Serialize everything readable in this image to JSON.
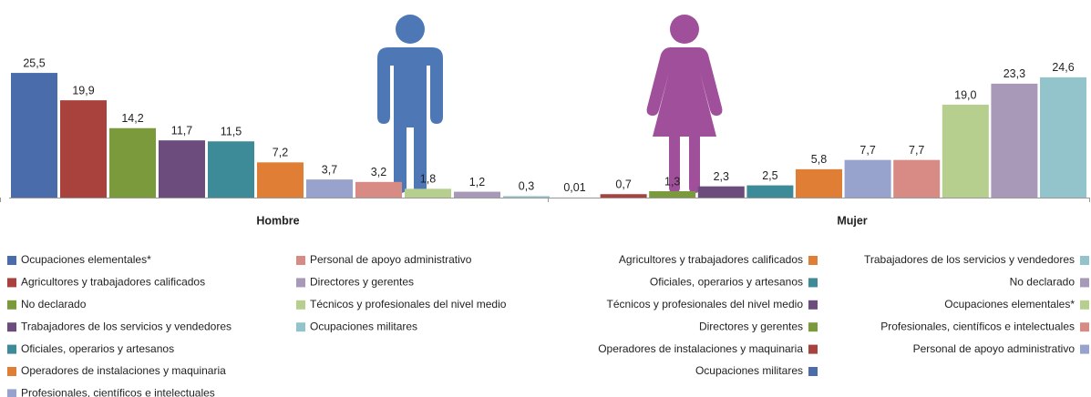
{
  "chart_data": [
    {
      "type": "bar",
      "title": "Hombre",
      "categories": [
        "Ocupaciones elementales*",
        "Agricultores y trabajadores calificados",
        "No declarado",
        "Trabajadores de los servicios y vendedores",
        "Oficiales, operarios y artesanos",
        "Operadores de instalaciones y maquinaria",
        "Profesionales, científicos e intelectuales",
        "Personal de apoyo administrativo",
        "Técnicos y profesionales del nivel medio",
        "Directores y gerentes",
        "Ocupaciones militares"
      ],
      "values": [
        25.5,
        19.9,
        14.2,
        11.7,
        11.5,
        7.2,
        3.7,
        3.2,
        1.8,
        1.2,
        0.3
      ],
      "value_labels": [
        "25,5",
        "19,9",
        "14,2",
        "11,7",
        "11,5",
        "7,2",
        "3,7",
        "3,2",
        "1,8",
        "1,2",
        "0,3"
      ],
      "colors": [
        "#4a6cab",
        "#a9413c",
        "#7b9a3c",
        "#6b4c7d",
        "#3d8b99",
        "#e07e36",
        "#97a2cd",
        "#d88b85",
        "#b7cf8e",
        "#a899b8",
        "#93c4cc"
      ],
      "legend": [
        {
          "name": "Ocupaciones elementales*",
          "color": "#4a6cab"
        },
        {
          "name": "Agricultores y trabajadores calificados",
          "color": "#a9413c"
        },
        {
          "name": "No declarado",
          "color": "#7b9a3c"
        },
        {
          "name": "Trabajadores de los servicios y vendedores",
          "color": "#6b4c7d"
        },
        {
          "name": "Oficiales, operarios y artesanos",
          "color": "#3d8b99"
        },
        {
          "name": "Operadores de instalaciones y maquinaria",
          "color": "#e07e36"
        },
        {
          "name": "Profesionales, científicos e intelectuales",
          "color": "#97a2cd"
        },
        {
          "name": "Personal de apoyo administrativo",
          "color": "#d88b85"
        },
        {
          "name": "Directores y gerentes",
          "color": "#a899b8"
        },
        {
          "name": "Técnicos y profesionales del nivel medio",
          "color": "#b7cf8e"
        },
        {
          "name": "Ocupaciones militares",
          "color": "#93c4cc"
        }
      ]
    },
    {
      "type": "bar",
      "title": "Mujer",
      "categories": [
        "Ocupaciones militares",
        "Operadores de instalaciones y maquinaria",
        "Directores y gerentes",
        "Técnicos y profesionales del nivel medio",
        "Oficiales, operarios y artesanos",
        "Agricultores y trabajadores calificados",
        "Personal de apoyo administrativo",
        "Profesionales, científicos e intelectuales",
        "Ocupaciones elementales*",
        "No declarado",
        "Trabajadores de los servicios y vendedores"
      ],
      "values": [
        0.01,
        0.7,
        1.3,
        2.3,
        2.5,
        5.8,
        7.7,
        7.7,
        19.0,
        23.3,
        24.6
      ],
      "value_labels": [
        "0,01",
        "0,7",
        "1,3",
        "2,3",
        "2,5",
        "5,8",
        "7,7",
        "7,7",
        "19,0",
        "23,3",
        "24,6"
      ],
      "colors": [
        "#4a6cab",
        "#a9413c",
        "#7b9a3c",
        "#6b4c7d",
        "#3d8b99",
        "#e07e36",
        "#97a2cd",
        "#d88b85",
        "#b7cf8e",
        "#a899b8",
        "#93c4cc"
      ],
      "legend": [
        {
          "name": "Agricultores y trabajadores calificados",
          "color": "#e07e36"
        },
        {
          "name": "Oficiales, operarios y artesanos",
          "color": "#3d8b99"
        },
        {
          "name": "Técnicos y profesionales del nivel medio",
          "color": "#6b4c7d"
        },
        {
          "name": "Directores y gerentes",
          "color": "#7b9a3c"
        },
        {
          "name": "Operadores de instalaciones y maquinaria",
          "color": "#a9413c"
        },
        {
          "name": "Ocupaciones militares",
          "color": "#4a6cab"
        },
        {
          "name": "Trabajadores de los servicios y vendedores",
          "color": "#93c4cc"
        },
        {
          "name": "No declarado",
          "color": "#a899b8"
        },
        {
          "name": "Ocupaciones elementales*",
          "color": "#b7cf8e"
        },
        {
          "name": "Profesionales, científicos e intelectuales",
          "color": "#d88b85"
        },
        {
          "name": "Personal de apoyo administrativo",
          "color": "#97a2cd"
        }
      ]
    }
  ]
}
